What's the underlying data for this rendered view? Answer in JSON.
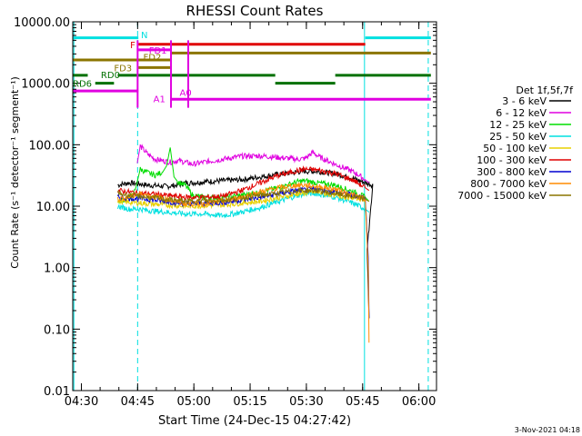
{
  "chart_data": {
    "type": "line",
    "title": "RHESSI Count Rates",
    "xlabel": "Start Time (24-Dec-15 04:27:42)",
    "ylabel": "Count Rate (s⁻¹ detector⁻¹ segment⁻¹)",
    "yscale": "log",
    "x_range_minutes": [
      0,
      97
    ],
    "ylim": [
      0.01,
      10000
    ],
    "x_ticks": [
      {
        "m": 2.3,
        "label": "04:30"
      },
      {
        "m": 17.3,
        "label": "04:45"
      },
      {
        "m": 32.3,
        "label": "05:00"
      },
      {
        "m": 47.3,
        "label": "05:15"
      },
      {
        "m": 62.3,
        "label": "05:30"
      },
      {
        "m": 77.3,
        "label": "05:45"
      },
      {
        "m": 92.3,
        "label": "06:00"
      }
    ],
    "y_ticks": [
      {
        "v": 10000,
        "label": "10000.00"
      },
      {
        "v": 1000,
        "label": "1000.00"
      },
      {
        "v": 100,
        "label": "100.00"
      },
      {
        "v": 10,
        "label": "10.00"
      },
      {
        "v": 1,
        "label": "1.00"
      },
      {
        "v": 0.1,
        "label": "0.10"
      },
      {
        "v": 0.01,
        "label": "0.01"
      }
    ],
    "legend": {
      "title": "Det 1f,5f,7f",
      "position": "right",
      "entries": [
        {
          "label": "3 - 6 keV",
          "color": "#000000"
        },
        {
          "label": "6 - 12 keV",
          "color": "#e000e0"
        },
        {
          "label": "12 - 25 keV",
          "color": "#00dd00"
        },
        {
          "label": "25 - 50 keV",
          "color": "#00e0e0"
        },
        {
          "label": "50 - 100 keV",
          "color": "#e8d000"
        },
        {
          "label": "100 - 300 keV",
          "color": "#e00000"
        },
        {
          "label": "300 - 800 keV",
          "color": "#0000d0"
        },
        {
          "label": "800 - 7000 keV",
          "color": "#ff8c00"
        },
        {
          "label": "7000 - 15000 keV",
          "color": "#8b7500"
        }
      ]
    },
    "series": [
      {
        "name": "3 - 6 keV",
        "color": "#000000",
        "x": [
          12,
          15,
          18,
          20,
          25,
          28,
          30,
          32,
          35,
          40,
          45,
          50,
          55,
          60,
          62,
          65,
          70,
          75,
          78,
          80,
          78.5,
          79
        ],
        "y": [
          22,
          24,
          23,
          22,
          21,
          22,
          24,
          24,
          25,
          26,
          27,
          30,
          33,
          36,
          37,
          37,
          34,
          28,
          24,
          22,
          2,
          0.15
        ]
      },
      {
        "name": "6 - 12 keV",
        "color": "#e000e0",
        "x": [
          17.2,
          18,
          20,
          22,
          24,
          26,
          28,
          30,
          32,
          35,
          40,
          45,
          50,
          55,
          60,
          62,
          64,
          66,
          68,
          70,
          72,
          74,
          76,
          78,
          79
        ],
        "y": [
          50,
          95,
          70,
          58,
          55,
          52,
          55,
          52,
          48,
          52,
          58,
          65,
          66,
          62,
          58,
          60,
          75,
          62,
          55,
          48,
          43,
          38,
          33,
          27,
          24
        ]
      },
      {
        "name": "12 - 25 keV",
        "color": "#00dd00",
        "x": [
          12,
          14,
          16,
          17.2,
          18,
          20,
          22,
          24,
          25,
          26,
          27,
          28,
          30,
          32,
          35,
          40,
          45,
          50,
          55,
          60,
          62,
          65,
          70,
          75,
          78,
          79
        ],
        "y": [
          12,
          13,
          15,
          25,
          40,
          35,
          32,
          36,
          45,
          90,
          30,
          25,
          22,
          15,
          14,
          14,
          15,
          17,
          20,
          25,
          26,
          24,
          22,
          17,
          14,
          12
        ]
      },
      {
        "name": "25 - 50 keV",
        "color": "#00e0e0",
        "x": [
          12,
          15,
          18,
          20,
          25,
          30,
          35,
          40,
          45,
          50,
          55,
          60,
          62,
          65,
          70,
          75,
          78,
          79
        ],
        "y": [
          10,
          9,
          9,
          8.5,
          8,
          7.5,
          7.5,
          7,
          8,
          9.5,
          12,
          15,
          16,
          16,
          14,
          11,
          9,
          8
        ]
      },
      {
        "name": "50 - 100 keV",
        "color": "#e8d000",
        "x": [
          12,
          20,
          30,
          40,
          50,
          60,
          65,
          70,
          78,
          79
        ],
        "y": [
          12,
          11,
          10,
          10.5,
          12,
          16,
          17,
          15,
          13,
          12
        ]
      },
      {
        "name": "100 - 300 keV",
        "color": "#e00000",
        "x": [
          12,
          15,
          18,
          20,
          25,
          30,
          35,
          40,
          45,
          50,
          55,
          60,
          62,
          65,
          70,
          75,
          78,
          79
        ],
        "y": [
          18,
          17,
          16,
          16,
          15,
          14,
          14,
          14.5,
          18,
          24,
          32,
          38,
          40,
          39,
          34,
          26,
          20,
          18
        ]
      },
      {
        "name": "300 - 800 keV",
        "color": "#0000d0",
        "x": [
          12,
          20,
          30,
          40,
          50,
          60,
          65,
          70,
          78,
          78.8,
          79
        ],
        "y": [
          14,
          13,
          11,
          11.5,
          14,
          18,
          19,
          17,
          14,
          1.5,
          0.15
        ]
      },
      {
        "name": "800 - 7000 keV",
        "color": "#ff8c00",
        "x": [
          12,
          15,
          18,
          20,
          25,
          30,
          35,
          40,
          45,
          50,
          55,
          60,
          62,
          65,
          70,
          75,
          78,
          78.8,
          79
        ],
        "y": [
          13,
          14,
          16,
          15,
          13,
          11,
          11,
          12,
          14,
          17,
          20,
          22,
          22,
          21,
          19,
          15,
          13,
          1.0,
          0.06
        ]
      },
      {
        "name": "7000 - 15000 keV",
        "color": "#8b7500",
        "x": [
          12,
          20,
          30,
          40,
          50,
          60,
          65,
          70,
          78,
          79
        ],
        "y": [
          16,
          14,
          12,
          12.5,
          15,
          18,
          18,
          16,
          13,
          12
        ]
      }
    ],
    "status_lines": [
      {
        "label": "N",
        "color": "#00e0e0",
        "segments": [
          [
            0,
            17.5,
            5500
          ],
          [
            78,
            95.5,
            5500
          ]
        ],
        "label_at": [
          18.2,
          6200
        ]
      },
      {
        "label": "F",
        "color": "#e00000",
        "segments": [
          [
            17.5,
            78,
            4300
          ]
        ],
        "label_at": [
          15.3,
          4300
        ]
      },
      {
        "label": "FD1",
        "color": "#e000e0",
        "segments": [
          [
            17.5,
            26,
            3500
          ]
        ],
        "label_at": [
          20.3,
          3500
        ]
      },
      {
        "label": "FD2",
        "color": "#8b7500",
        "segments": [
          [
            0,
            26,
            2400
          ],
          [
            26,
            95.5,
            3100
          ]
        ],
        "label_at": [
          18.8,
          2700
        ]
      },
      {
        "label": "FD3",
        "color": "#8b7500",
        "segments": [
          [
            17.5,
            26,
            1800
          ]
        ],
        "label_at": [
          11,
          1800
        ]
      },
      {
        "label": "RD6",
        "color": "#007000",
        "segments": [
          [
            6,
            11,
            1000
          ]
        ],
        "label_at": [
          0,
          1000
        ]
      },
      {
        "label": "RD0",
        "color": "#007000",
        "segments": [
          [
            0,
            4,
            1350
          ],
          [
            12,
            54,
            1350
          ],
          [
            54,
            70,
            1000
          ],
          [
            70,
            95.5,
            1350
          ]
        ],
        "label_at": [
          7.5,
          1400
        ]
      },
      {
        "label": "A1",
        "color": "#e000e0",
        "segments": [
          [
            0,
            17.5,
            750
          ],
          [
            26,
            95.5,
            550
          ]
        ],
        "label_at": [
          21.5,
          560
        ]
      },
      {
        "label": "A0",
        "color": "#e000e0",
        "segments": [],
        "label_at": [
          28.5,
          720
        ]
      }
    ],
    "attenuator_spikes_minutes": [
      17.3,
      26.2,
      30.8
    ],
    "eclipse_markers_minutes": [
      0.3,
      17.3,
      77.8,
      94.8
    ],
    "footer_timestamp": "3-Nov-2021 04:18"
  }
}
